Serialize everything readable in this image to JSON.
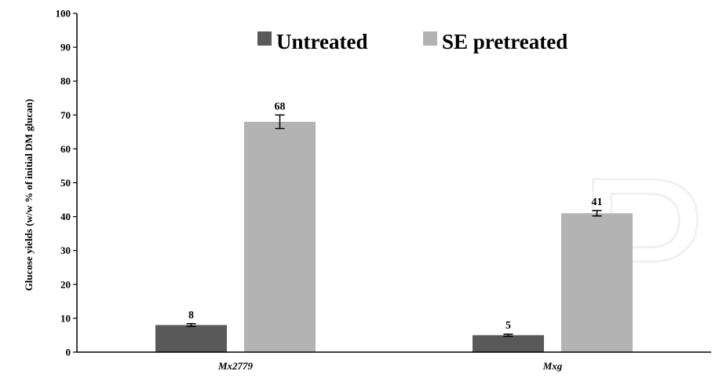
{
  "chart_data": {
    "type": "bar",
    "title": "",
    "xlabel": "",
    "ylabel": "Glucose yields (w/w % of initial DM glucan)",
    "ylim": [
      0,
      100
    ],
    "yticks": [
      0,
      10,
      20,
      30,
      40,
      50,
      60,
      70,
      80,
      90,
      100
    ],
    "categories": [
      "Mx2779",
      "Mxg"
    ],
    "series": [
      {
        "name": "Untreated",
        "values": [
          8,
          5
        ],
        "errors": [
          0.4,
          0.3
        ],
        "labels": [
          "8",
          "5"
        ],
        "color": "#595959"
      },
      {
        "name": "SE pretreated",
        "values": [
          68,
          41
        ],
        "errors": [
          2.0,
          0.8
        ],
        "labels": [
          "68",
          "41"
        ],
        "color": "#b3b3b3"
      }
    ],
    "legend_position": "top",
    "grid": false
  },
  "watermark_text": "Pr"
}
